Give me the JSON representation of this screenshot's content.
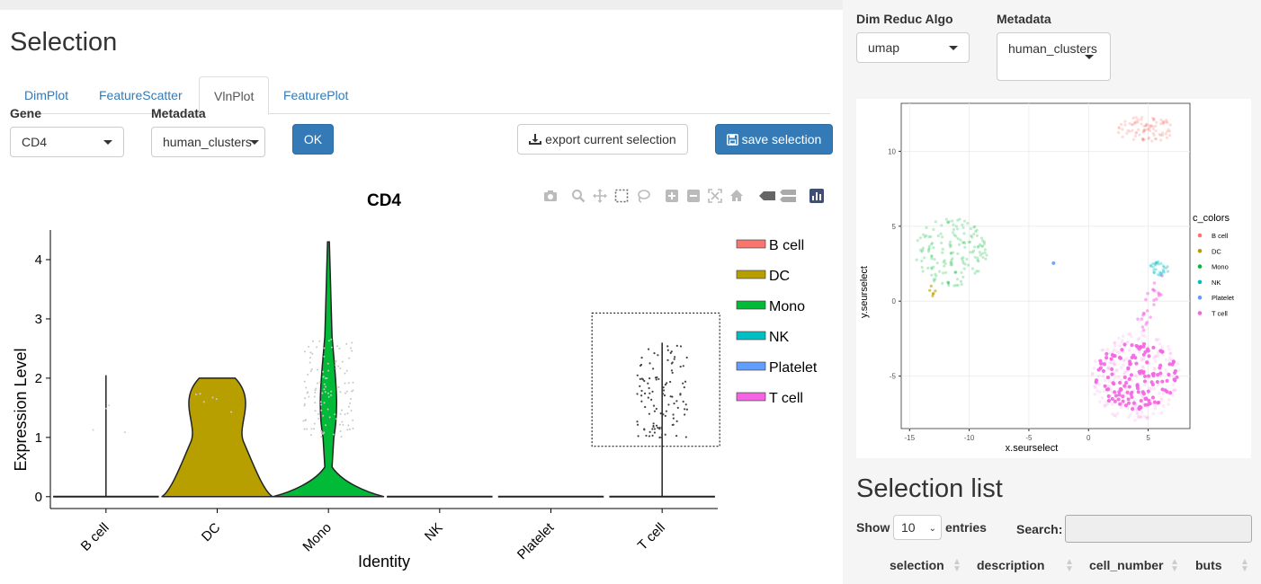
{
  "left": {
    "title": "Selection",
    "tabs": [
      {
        "label": "DimPlot",
        "active": false
      },
      {
        "label": "FeatureScatter",
        "active": false
      },
      {
        "label": "VlnPlot",
        "active": true
      },
      {
        "label": "FeaturePlot",
        "active": false
      }
    ],
    "gene": {
      "label": "Gene",
      "value": "CD4"
    },
    "metadata": {
      "label": "Metadata",
      "value": "human_clusters"
    },
    "ok_label": "OK",
    "export_label": "export current selection",
    "save_label": "save selection"
  },
  "modebar_icons": [
    "camera-icon",
    "zoom-icon",
    "pan-icon",
    "box-select-icon",
    "lasso-select-icon",
    "zoom-in-icon",
    "zoom-out-icon",
    "autoscale-icon",
    "reset-axes-icon",
    "hover-closest-icon",
    "hover-compare-icon",
    "plotly-logo-icon"
  ],
  "chart_data": [
    {
      "type": "violin",
      "title": "CD4",
      "xlabel": "Identity",
      "ylabel": "Expression Level",
      "categories": [
        "B cell",
        "DC",
        "Mono",
        "NK",
        "Platelet",
        "T cell"
      ],
      "ylim": [
        -0.2,
        4.5
      ],
      "yticks": [
        0,
        1,
        2,
        3,
        4
      ],
      "max_values": [
        2.05,
        2.0,
        4.3,
        0,
        0,
        2.6
      ],
      "colors": [
        "#F8766D",
        "#B79F00",
        "#00BA38",
        "#00BFC4",
        "#619CFF",
        "#F564E3"
      ],
      "legend": [
        "B cell",
        "DC",
        "Mono",
        "NK",
        "Platelet",
        "T cell"
      ],
      "legend_position": "right",
      "selection_box": {
        "x_category": "T cell",
        "y_range": [
          0.85,
          3.1
        ]
      }
    },
    {
      "type": "scatter",
      "xlabel": "x.seurselect",
      "ylabel": "y.seurselect",
      "xticks": [
        -15,
        -10,
        -5,
        0,
        5
      ],
      "yticks": [
        -5,
        0,
        5,
        10
      ],
      "xlim": [
        -15.7,
        8.5
      ],
      "ylim": [
        -8.5,
        13.2
      ],
      "legend_title": "c_colors",
      "legend": [
        {
          "name": "B cell",
          "color": "#F8766D"
        },
        {
          "name": "DC",
          "color": "#B79F00"
        },
        {
          "name": "Mono",
          "color": "#00BA38"
        },
        {
          "name": "NK",
          "color": "#00BFC4"
        },
        {
          "name": "Platelet",
          "color": "#619CFF"
        },
        {
          "name": "T cell",
          "color": "#F564E3"
        }
      ],
      "clusters": [
        {
          "name": "B cell",
          "cx": 4.8,
          "cy": 11.5
        },
        {
          "name": "DC",
          "cx": -13.0,
          "cy": 0.7
        },
        {
          "name": "Mono",
          "cx": -11.5,
          "cy": 3.3
        },
        {
          "name": "NK",
          "cx": 6.0,
          "cy": 2.2
        },
        {
          "name": "Platelet",
          "cx": -3.0,
          "cy": 2.5
        },
        {
          "name": "T cell",
          "cx": 4.0,
          "cy": -5.0
        }
      ]
    }
  ],
  "right": {
    "dimreduc": {
      "label": "Dim Reduc Algo",
      "value": "umap"
    },
    "metadata": {
      "label": "Metadata",
      "value": "human_clusters"
    },
    "selection_list_title": "Selection list",
    "show_label": "Show",
    "entries_value": "10",
    "entries_label": "entries",
    "search_label": "Search:",
    "columns": [
      "selection",
      "description",
      "cell_number",
      "buts"
    ]
  }
}
